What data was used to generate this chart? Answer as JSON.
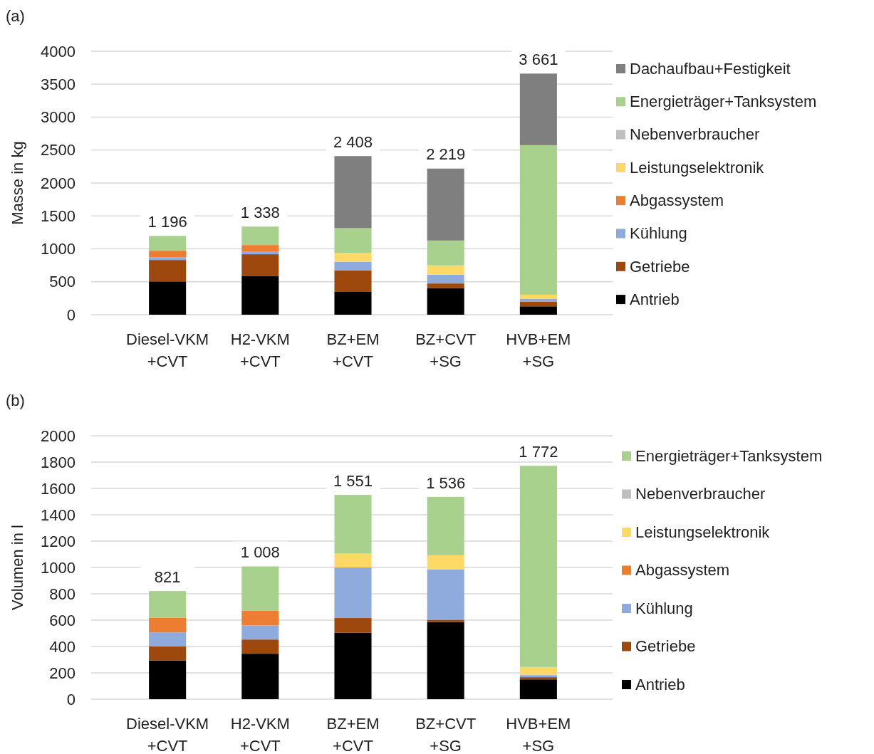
{
  "chart_data": [
    {
      "type": "bar",
      "title": "(a)",
      "ylabel": "Masse in kg",
      "stacked": true,
      "legend": "right",
      "grid": "y",
      "categories": [
        "Diesel-VKM\n+CVT",
        "H2-VKM\n+CVT",
        "BZ+EM\n+CVT",
        "BZ+CVT\n+SG",
        "HVB+EM\n+SG"
      ],
      "ylim": [
        0,
        4000
      ],
      "yticks": [
        0,
        500,
        1000,
        1500,
        2000,
        2500,
        3000,
        3500,
        4000
      ],
      "series": [
        {
          "name": "Antrieb",
          "color": "#000000",
          "values": [
            505,
            590,
            346,
            405,
            127
          ]
        },
        {
          "name": "Getriebe",
          "color": "#9e480e",
          "values": [
            326,
            328,
            327,
            69,
            68
          ]
        },
        {
          "name": "Kühlung",
          "color": "#8faadc",
          "values": [
            40,
            43,
            130,
            134,
            48
          ]
        },
        {
          "name": "Abgassystem",
          "color": "#ed7d31",
          "values": [
            100,
            97,
            null,
            null,
            null
          ]
        },
        {
          "name": "Leistungselektronik",
          "color": "#ffd966",
          "values": [
            null,
            null,
            137,
            141,
            61
          ]
        },
        {
          "name": "Nebenverbraucher",
          "color": "#bfbfbf",
          "values": [
            null,
            null,
            null,
            null,
            null
          ]
        },
        {
          "name": "Energieträger+Tanksystem",
          "color": "#a9d18e",
          "values": [
            225,
            280,
            374,
            377,
            2270
          ]
        },
        {
          "name": "Dachaufbau+Festigkeit",
          "color": "#7f7f7f",
          "values": [
            null,
            null,
            1094,
            1093,
            1087
          ]
        }
      ],
      "totals": [
        "1 196",
        "1 338",
        "2 408",
        "2 219",
        "3 661"
      ]
    },
    {
      "type": "bar",
      "title": "(b)",
      "ylabel": "Volumen in l",
      "stacked": true,
      "legend": "right",
      "grid": "y",
      "categories": [
        "Diesel-VKM\n+CVT",
        "H2-VKM\n+CVT",
        "BZ+EM\n+CVT",
        "BZ+CVT\n+SG",
        "HVB+EM\n+SG"
      ],
      "ylim": [
        0,
        2000
      ],
      "yticks": [
        0,
        200,
        400,
        600,
        800,
        1000,
        1200,
        1400,
        1600,
        1800,
        2000
      ],
      "series": [
        {
          "name": "Antrieb",
          "color": "#000000",
          "values": [
            294,
            345,
            505,
            585,
            150
          ]
        },
        {
          "name": "Getriebe",
          "color": "#9e480e",
          "values": [
            107,
            108,
            111,
            18,
            17
          ]
        },
        {
          "name": "Kühlung",
          "color": "#8faadc",
          "values": [
            106,
            107,
            384,
            383,
            16
          ]
        },
        {
          "name": "Abgassystem",
          "color": "#ed7d31",
          "values": [
            112,
            110,
            null,
            null,
            null
          ]
        },
        {
          "name": "Leistungselektronik",
          "color": "#ffd966",
          "values": [
            null,
            null,
            105,
            107,
            61
          ]
        },
        {
          "name": "Nebenverbraucher",
          "color": "#bfbfbf",
          "values": [
            null,
            null,
            null,
            null,
            null
          ]
        },
        {
          "name": "Energieträger+Tanksystem",
          "color": "#a9d18e",
          "values": [
            202,
            338,
            446,
            443,
            1528
          ]
        }
      ],
      "totals": [
        "821",
        "1 008",
        "1 551",
        "1 536",
        "1 772"
      ]
    }
  ]
}
